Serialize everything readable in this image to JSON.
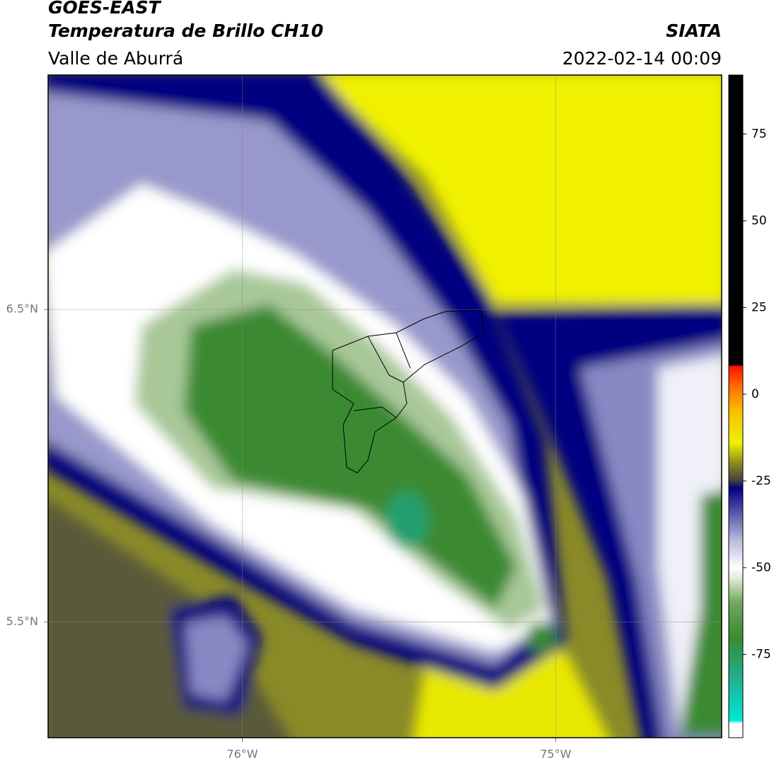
{
  "header": {
    "title": "GOES-EAST",
    "subtitle": "Temperatura de Brillo CH10",
    "region": "Valle de Aburrá",
    "agency": "SIATA",
    "datetime": "2022-02-14 00:09"
  },
  "map": {
    "xlim": [
      -76.62,
      -74.47
    ],
    "ylim": [
      5.13,
      7.25
    ],
    "xticks": [
      {
        "value": -76,
        "label": "76°W"
      },
      {
        "value": -75,
        "label": "75°W"
      }
    ],
    "yticks": [
      {
        "value": 6.5,
        "label": "6.5°N"
      },
      {
        "value": 5.5,
        "label": "5.5°N"
      }
    ]
  },
  "colorbar": {
    "lim": [
      -99,
      92
    ],
    "ticks": [
      75,
      50,
      25,
      0,
      -25,
      -50,
      -75
    ],
    "stops": [
      {
        "value": -99,
        "color": "#ffffff"
      },
      {
        "value": -95,
        "color": "#ffffff"
      },
      {
        "value": -94,
        "color": "#00e8d8"
      },
      {
        "value": -82,
        "color": "#20b090"
      },
      {
        "value": -70,
        "color": "#3a8a30"
      },
      {
        "value": -60,
        "color": "#70a860"
      },
      {
        "value": -53,
        "color": "#e0ecd8"
      },
      {
        "value": -50,
        "color": "#ffffff"
      },
      {
        "value": -42,
        "color": "#b8b8dc"
      },
      {
        "value": -33,
        "color": "#4848a0"
      },
      {
        "value": -27,
        "color": "#000080"
      },
      {
        "value": -25,
        "color": "#404040"
      },
      {
        "value": -20,
        "color": "#888820"
      },
      {
        "value": -14,
        "color": "#f0f000"
      },
      {
        "value": -5,
        "color": "#f8c000"
      },
      {
        "value": 2,
        "color": "#ff7000"
      },
      {
        "value": 8,
        "color": "#ff1000"
      },
      {
        "value": 8.5,
        "color": "#000000"
      },
      {
        "value": 92,
        "color": "#000000"
      }
    ]
  }
}
